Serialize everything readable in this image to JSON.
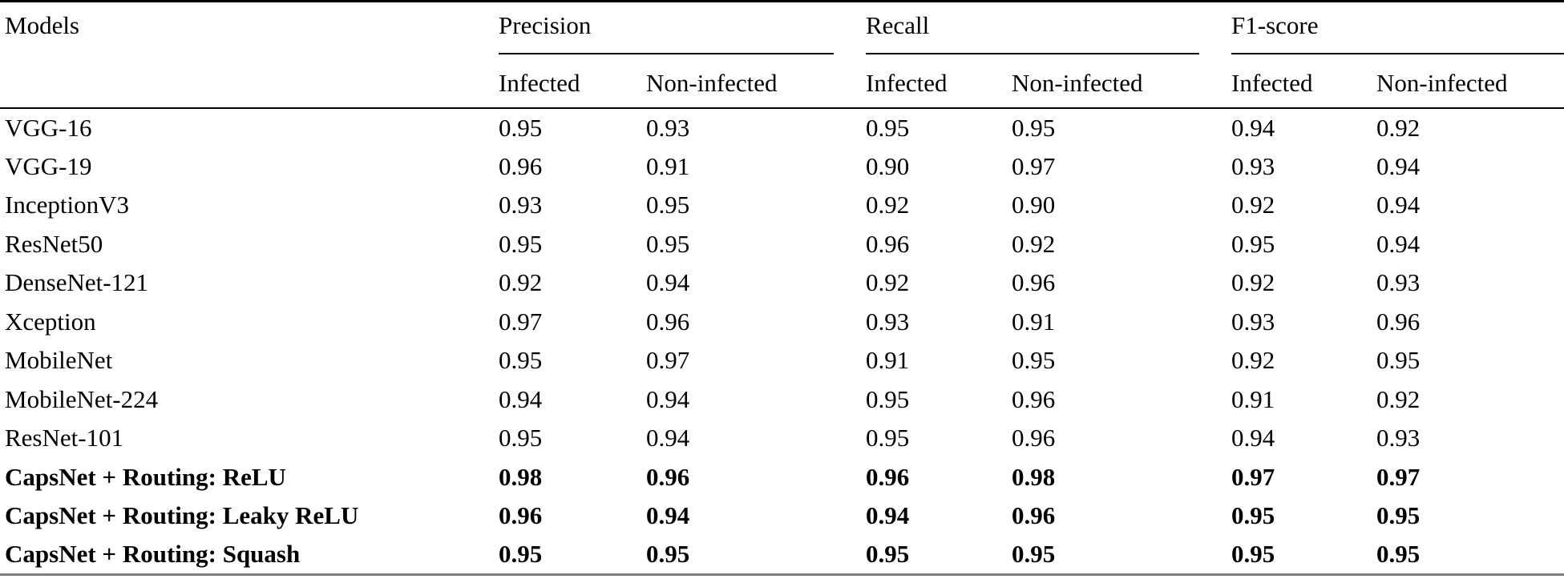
{
  "colors": {
    "text": "#000000",
    "rule": "#000000",
    "bottom_rule": "#7d7d7d"
  },
  "table": {
    "models_header": "Models",
    "groups": [
      {
        "label": "Precision",
        "subcolumns": [
          "Infected",
          "Non-infected"
        ]
      },
      {
        "label": "Recall",
        "subcolumns": [
          "Infected",
          "Non-infected"
        ]
      },
      {
        "label": "F1-score",
        "subcolumns": [
          "Infected",
          "Non-infected"
        ]
      }
    ],
    "rows": [
      {
        "model": "VGG-16",
        "bold": false,
        "values": [
          "0.95",
          "0.93",
          "0.95",
          "0.95",
          "0.94",
          "0.92"
        ]
      },
      {
        "model": "VGG-19",
        "bold": false,
        "values": [
          "0.96",
          "0.91",
          "0.90",
          "0.97",
          "0.93",
          "0.94"
        ]
      },
      {
        "model": "InceptionV3",
        "bold": false,
        "values": [
          "0.93",
          "0.95",
          "0.92",
          "0.90",
          "0.92",
          "0.94"
        ]
      },
      {
        "model": "ResNet50",
        "bold": false,
        "values": [
          "0.95",
          "0.95",
          "0.96",
          "0.92",
          "0.95",
          "0.94"
        ]
      },
      {
        "model": "DenseNet-121",
        "bold": false,
        "values": [
          "0.92",
          "0.94",
          "0.92",
          "0.96",
          "0.92",
          "0.93"
        ]
      },
      {
        "model": "Xception",
        "bold": false,
        "values": [
          "0.97",
          "0.96",
          "0.93",
          "0.91",
          "0.93",
          "0.96"
        ]
      },
      {
        "model": "MobileNet",
        "bold": false,
        "values": [
          "0.95",
          "0.97",
          "0.91",
          "0.95",
          "0.92",
          "0.95"
        ]
      },
      {
        "model": "MobileNet-224",
        "bold": false,
        "values": [
          "0.94",
          "0.94",
          "0.95",
          "0.96",
          "0.91",
          "0.92"
        ]
      },
      {
        "model": "ResNet-101",
        "bold": false,
        "values": [
          "0.95",
          "0.94",
          "0.95",
          "0.96",
          "0.94",
          "0.93"
        ]
      },
      {
        "model": "CapsNet + Routing: ReLU",
        "bold": true,
        "values": [
          "0.98",
          "0.96",
          "0.96",
          "0.98",
          "0.97",
          "0.97"
        ]
      },
      {
        "model": "CapsNet + Routing: Leaky ReLU",
        "bold": true,
        "values": [
          "0.96",
          "0.94",
          "0.94",
          "0.96",
          "0.95",
          "0.95"
        ]
      },
      {
        "model": "CapsNet + Routing: Squash",
        "bold": true,
        "values": [
          "0.95",
          "0.95",
          "0.95",
          "0.95",
          "0.95",
          "0.95"
        ]
      }
    ]
  }
}
